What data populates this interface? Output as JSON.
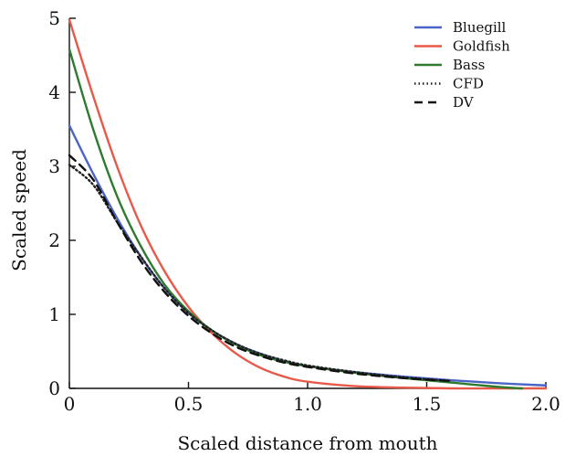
{
  "chart_data": {
    "type": "line",
    "title": "",
    "xlabel": "Scaled distance from mouth",
    "ylabel": "Scaled speed",
    "xlim": [
      0,
      2.0
    ],
    "ylim": [
      0,
      5
    ],
    "xticks": [
      "0",
      "0.5",
      "1.0",
      "1.5",
      "2.0"
    ],
    "xtick_values": [
      0,
      0.5,
      1.0,
      1.5,
      2.0
    ],
    "yticks": [
      "0",
      "1",
      "2",
      "3",
      "4",
      "5"
    ],
    "ytick_values": [
      0,
      1,
      2,
      3,
      4,
      5
    ],
    "grid": false,
    "legend_position": "top-right",
    "series": [
      {
        "name": "Bluegill",
        "color": "#4a64c8",
        "style": "solid",
        "x": [
          0,
          0.1,
          0.2,
          0.3,
          0.4,
          0.5,
          0.6,
          0.7,
          0.8,
          0.9,
          1.0,
          1.2,
          1.4,
          1.6,
          1.8,
          2.0
        ],
        "y": [
          3.55,
          2.9,
          2.3,
          1.78,
          1.35,
          1.02,
          0.78,
          0.6,
          0.47,
          0.37,
          0.3,
          0.22,
          0.16,
          0.11,
          0.07,
          0.04
        ]
      },
      {
        "name": "Goldfish",
        "color": "#e8594a",
        "style": "solid",
        "x": [
          0,
          0.1,
          0.2,
          0.3,
          0.4,
          0.5,
          0.6,
          0.7,
          0.8,
          0.9,
          1.0,
          1.2,
          1.4,
          1.6,
          1.8,
          2.0
        ],
        "y": [
          4.98,
          3.95,
          3.0,
          2.2,
          1.58,
          1.1,
          0.74,
          0.47,
          0.28,
          0.16,
          0.09,
          0.03,
          0.01,
          0.0,
          0.0,
          0.0
        ]
      },
      {
        "name": "Bass",
        "color": "#2e7a2e",
        "style": "solid",
        "x": [
          0,
          0.1,
          0.2,
          0.3,
          0.4,
          0.5,
          0.6,
          0.7,
          0.8,
          0.9,
          1.0,
          1.2,
          1.4,
          1.6,
          1.8,
          1.9
        ],
        "y": [
          4.58,
          3.5,
          2.6,
          1.92,
          1.4,
          1.04,
          0.78,
          0.59,
          0.45,
          0.36,
          0.3,
          0.21,
          0.14,
          0.08,
          0.02,
          0.0
        ]
      },
      {
        "name": "CFD",
        "color": "#222222",
        "style": "dotted",
        "x": [
          0,
          0.1,
          0.2,
          0.3,
          0.4,
          0.5,
          0.6,
          0.7,
          0.8,
          0.9,
          1.0,
          1.2,
          1.4,
          1.6
        ],
        "y": [
          3.02,
          2.75,
          2.25,
          1.78,
          1.35,
          1.02,
          0.78,
          0.6,
          0.47,
          0.38,
          0.31,
          0.22,
          0.15,
          0.1
        ]
      },
      {
        "name": "DV",
        "color": "#111111",
        "style": "dashed",
        "x": [
          0,
          0.1,
          0.2,
          0.3,
          0.4,
          0.5,
          0.6,
          0.7,
          0.8,
          0.9,
          1.0,
          1.2,
          1.4,
          1.6
        ],
        "y": [
          3.15,
          2.82,
          2.25,
          1.72,
          1.3,
          0.98,
          0.74,
          0.56,
          0.44,
          0.35,
          0.29,
          0.2,
          0.14,
          0.1
        ]
      }
    ]
  }
}
